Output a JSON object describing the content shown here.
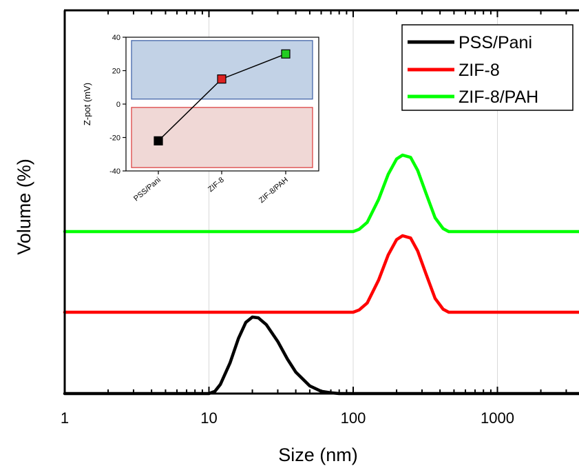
{
  "chart_data": [
    {
      "type": "line",
      "xscale": "log",
      "xlim": [
        1,
        4000
      ],
      "xticks": [
        1,
        10,
        100,
        1000
      ],
      "xtick_labels": [
        "1",
        "10",
        "100",
        "1000"
      ],
      "xlabel": "Size (nm)",
      "ylabel": "Volume (%)",
      "yticks_shown": false,
      "grid": "vertical",
      "legend": "top-right",
      "series": [
        {
          "name": "PSS/Pani",
          "color": "#000000",
          "offset": 0,
          "points": [
            [
              1,
              0
            ],
            [
              10,
              0
            ],
            [
              11,
              0.03
            ],
            [
              12,
              0.12
            ],
            [
              14,
              0.4
            ],
            [
              16,
              0.72
            ],
            [
              18,
              0.93
            ],
            [
              20,
              1.0
            ],
            [
              22,
              0.99
            ],
            [
              25,
              0.9
            ],
            [
              30,
              0.68
            ],
            [
              35,
              0.45
            ],
            [
              40,
              0.28
            ],
            [
              50,
              0.1
            ],
            [
              60,
              0.03
            ],
            [
              70,
              0.01
            ],
            [
              80,
              0
            ],
            [
              4000,
              0
            ]
          ]
        },
        {
          "name": "ZIF-8",
          "color": "#ff0000",
          "offset": 1,
          "points": [
            [
              1,
              0
            ],
            [
              100,
              0
            ],
            [
              110,
              0.03
            ],
            [
              125,
              0.12
            ],
            [
              150,
              0.42
            ],
            [
              175,
              0.75
            ],
            [
              200,
              0.95
            ],
            [
              220,
              1.0
            ],
            [
              250,
              0.97
            ],
            [
              280,
              0.8
            ],
            [
              320,
              0.5
            ],
            [
              370,
              0.18
            ],
            [
              420,
              0.04
            ],
            [
              460,
              0
            ],
            [
              4000,
              0
            ]
          ]
        },
        {
          "name": "ZIF-8/PAH",
          "color": "#00ff00",
          "offset": 2,
          "points": [
            [
              1,
              0
            ],
            [
              100,
              0
            ],
            [
              110,
              0.03
            ],
            [
              125,
              0.12
            ],
            [
              150,
              0.42
            ],
            [
              175,
              0.75
            ],
            [
              200,
              0.95
            ],
            [
              220,
              1.0
            ],
            [
              250,
              0.97
            ],
            [
              280,
              0.8
            ],
            [
              320,
              0.5
            ],
            [
              370,
              0.18
            ],
            [
              420,
              0.04
            ],
            [
              460,
              0
            ],
            [
              4000,
              0
            ]
          ]
        }
      ]
    },
    {
      "type": "line",
      "ylabel": "Z-pot (mV)",
      "ylim": [
        -40,
        40
      ],
      "yticks": [
        -40,
        -20,
        0,
        20,
        40
      ],
      "categories": [
        "PSS/Pani",
        "ZIF-8",
        "ZIF-8/PAH"
      ],
      "values": [
        -22,
        15,
        30
      ],
      "marker_colors": [
        "#000000",
        "#dd2222",
        "#22cc22"
      ],
      "regions": [
        {
          "name": "positive",
          "from": 3,
          "to": 38,
          "fill": "#c2d2e6",
          "stroke": "#4466aa"
        },
        {
          "name": "negative",
          "from": -38,
          "to": -2,
          "fill": "#f0d8d6",
          "stroke": "#dd4444"
        }
      ]
    }
  ]
}
